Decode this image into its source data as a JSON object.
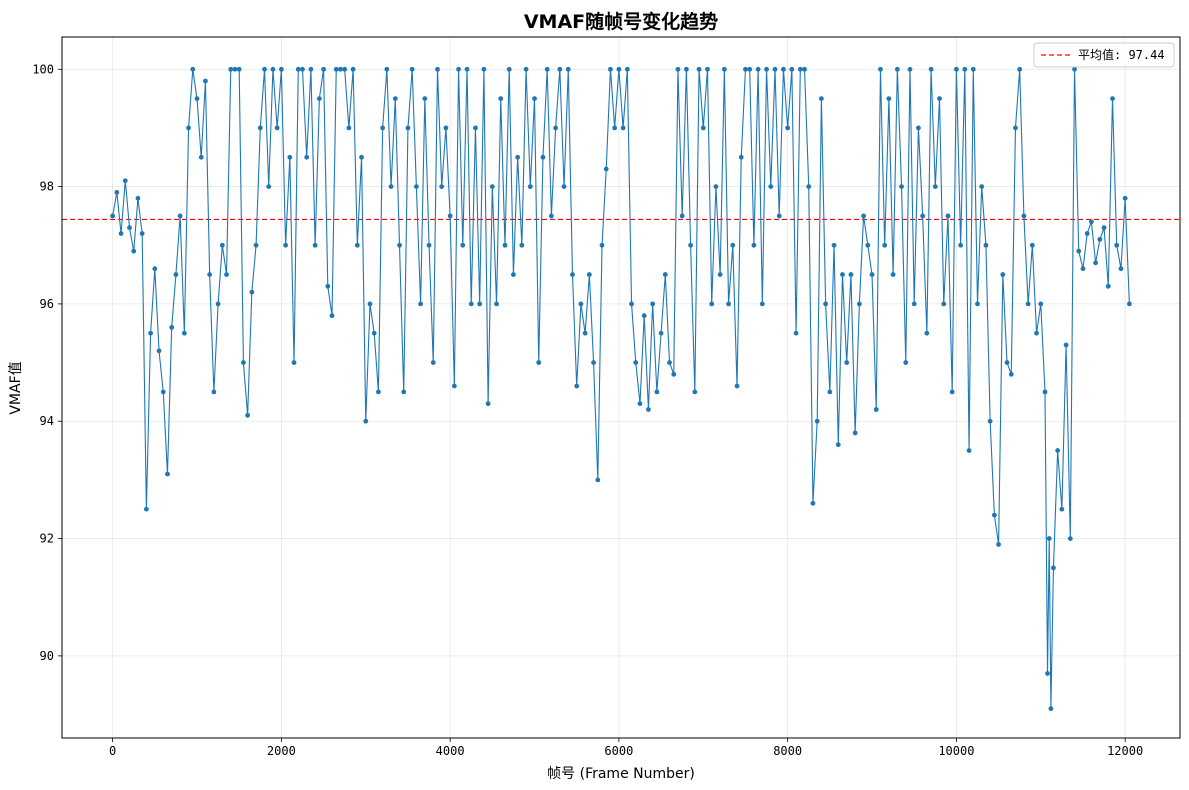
{
  "chart_data": {
    "type": "line",
    "title": "VMAF随帧号变化趋势",
    "xlabel": "帧号 (Frame Number)",
    "ylabel": "VMAF值",
    "xlim": [
      -600,
      12650
    ],
    "ylim": [
      88.6,
      100.55
    ],
    "x_ticks": [
      0,
      2000,
      4000,
      6000,
      8000,
      10000,
      12000
    ],
    "y_ticks": [
      90,
      92,
      94,
      96,
      98,
      100
    ],
    "grid": true,
    "legend_position": "top-right",
    "colors": {
      "series": "#1f77b4",
      "mean_line": "#ff0000"
    },
    "mean_line": {
      "label": "平均值: 97.44",
      "value": 97.44
    },
    "series": [
      {
        "name": "VMAF",
        "marker": "circle",
        "points": [
          [
            0,
            97.5
          ],
          [
            50,
            97.9
          ],
          [
            100,
            97.2
          ],
          [
            150,
            98.1
          ],
          [
            200,
            97.3
          ],
          [
            250,
            96.9
          ],
          [
            300,
            97.8
          ],
          [
            350,
            97.2
          ],
          [
            400,
            92.5
          ],
          [
            450,
            95.5
          ],
          [
            500,
            96.6
          ],
          [
            550,
            95.2
          ],
          [
            600,
            94.5
          ],
          [
            650,
            93.1
          ],
          [
            700,
            95.6
          ],
          [
            750,
            96.5
          ],
          [
            800,
            97.5
          ],
          [
            850,
            95.5
          ],
          [
            900,
            99.0
          ],
          [
            950,
            100.0
          ],
          [
            1000,
            99.5
          ],
          [
            1050,
            98.5
          ],
          [
            1100,
            99.8
          ],
          [
            1150,
            96.5
          ],
          [
            1200,
            94.5
          ],
          [
            1250,
            96.0
          ],
          [
            1300,
            97.0
          ],
          [
            1350,
            96.5
          ],
          [
            1400,
            100.0
          ],
          [
            1450,
            100.0
          ],
          [
            1500,
            100.0
          ],
          [
            1550,
            95.0
          ],
          [
            1600,
            94.1
          ],
          [
            1650,
            96.2
          ],
          [
            1700,
            97.0
          ],
          [
            1750,
            99.0
          ],
          [
            1800,
            100.0
          ],
          [
            1850,
            98.0
          ],
          [
            1900,
            100.0
          ],
          [
            1950,
            99.0
          ],
          [
            2000,
            100.0
          ],
          [
            2050,
            97.0
          ],
          [
            2100,
            98.5
          ],
          [
            2150,
            95.0
          ],
          [
            2200,
            100.0
          ],
          [
            2250,
            100.0
          ],
          [
            2300,
            98.5
          ],
          [
            2350,
            100.0
          ],
          [
            2400,
            97.0
          ],
          [
            2450,
            99.5
          ],
          [
            2500,
            100.0
          ],
          [
            2550,
            96.3
          ],
          [
            2600,
            95.8
          ],
          [
            2650,
            100.0
          ],
          [
            2700,
            100.0
          ],
          [
            2750,
            100.0
          ],
          [
            2800,
            99.0
          ],
          [
            2850,
            100.0
          ],
          [
            2900,
            97.0
          ],
          [
            2950,
            98.5
          ],
          [
            3000,
            94.0
          ],
          [
            3050,
            96.0
          ],
          [
            3100,
            95.5
          ],
          [
            3150,
            94.5
          ],
          [
            3200,
            99.0
          ],
          [
            3250,
            100.0
          ],
          [
            3300,
            98.0
          ],
          [
            3350,
            99.5
          ],
          [
            3400,
            97.0
          ],
          [
            3450,
            94.5
          ],
          [
            3500,
            99.0
          ],
          [
            3550,
            100.0
          ],
          [
            3600,
            98.0
          ],
          [
            3650,
            96.0
          ],
          [
            3700,
            99.5
          ],
          [
            3750,
            97.0
          ],
          [
            3800,
            95.0
          ],
          [
            3850,
            100.0
          ],
          [
            3900,
            98.0
          ],
          [
            3950,
            99.0
          ],
          [
            4000,
            97.5
          ],
          [
            4050,
            94.6
          ],
          [
            4100,
            100.0
          ],
          [
            4150,
            97.0
          ],
          [
            4200,
            100.0
          ],
          [
            4250,
            96.0
          ],
          [
            4300,
            99.0
          ],
          [
            4350,
            96.0
          ],
          [
            4400,
            100.0
          ],
          [
            4450,
            94.3
          ],
          [
            4500,
            98.0
          ],
          [
            4550,
            96.0
          ],
          [
            4600,
            99.5
          ],
          [
            4650,
            97.0
          ],
          [
            4700,
            100.0
          ],
          [
            4750,
            96.5
          ],
          [
            4800,
            98.5
          ],
          [
            4850,
            97.0
          ],
          [
            4900,
            100.0
          ],
          [
            4950,
            98.0
          ],
          [
            5000,
            99.5
          ],
          [
            5050,
            95.0
          ],
          [
            5100,
            98.5
          ],
          [
            5150,
            100.0
          ],
          [
            5200,
            97.5
          ],
          [
            5250,
            99.0
          ],
          [
            5300,
            100.0
          ],
          [
            5350,
            98.0
          ],
          [
            5400,
            100.0
          ],
          [
            5450,
            96.5
          ],
          [
            5500,
            94.6
          ],
          [
            5550,
            96.0
          ],
          [
            5600,
            95.5
          ],
          [
            5650,
            96.5
          ],
          [
            5700,
            95.0
          ],
          [
            5750,
            93.0
          ],
          [
            5800,
            97.0
          ],
          [
            5850,
            98.3
          ],
          [
            5900,
            100.0
          ],
          [
            5950,
            99.0
          ],
          [
            6000,
            100.0
          ],
          [
            6050,
            99.0
          ],
          [
            6100,
            100.0
          ],
          [
            6150,
            96.0
          ],
          [
            6200,
            95.0
          ],
          [
            6250,
            94.3
          ],
          [
            6300,
            95.8
          ],
          [
            6350,
            94.2
          ],
          [
            6400,
            96.0
          ],
          [
            6450,
            94.5
          ],
          [
            6500,
            95.5
          ],
          [
            6550,
            96.5
          ],
          [
            6600,
            95.0
          ],
          [
            6650,
            94.8
          ],
          [
            6700,
            100.0
          ],
          [
            6750,
            97.5
          ],
          [
            6800,
            100.0
          ],
          [
            6850,
            97.0
          ],
          [
            6900,
            94.5
          ],
          [
            6950,
            100.0
          ],
          [
            7000,
            99.0
          ],
          [
            7050,
            100.0
          ],
          [
            7100,
            96.0
          ],
          [
            7150,
            98.0
          ],
          [
            7200,
            96.5
          ],
          [
            7250,
            100.0
          ],
          [
            7300,
            96.0
          ],
          [
            7350,
            97.0
          ],
          [
            7400,
            94.6
          ],
          [
            7450,
            98.5
          ],
          [
            7500,
            100.0
          ],
          [
            7550,
            100.0
          ],
          [
            7600,
            97.0
          ],
          [
            7650,
            100.0
          ],
          [
            7700,
            96.0
          ],
          [
            7750,
            100.0
          ],
          [
            7800,
            98.0
          ],
          [
            7850,
            100.0
          ],
          [
            7900,
            97.5
          ],
          [
            7950,
            100.0
          ],
          [
            8000,
            99.0
          ],
          [
            8050,
            100.0
          ],
          [
            8100,
            95.5
          ],
          [
            8150,
            100.0
          ],
          [
            8200,
            100.0
          ],
          [
            8250,
            98.0
          ],
          [
            8300,
            92.6
          ],
          [
            8350,
            94.0
          ],
          [
            8400,
            99.5
          ],
          [
            8450,
            96.0
          ],
          [
            8500,
            94.5
          ],
          [
            8550,
            97.0
          ],
          [
            8600,
            93.6
          ],
          [
            8650,
            96.5
          ],
          [
            8700,
            95.0
          ],
          [
            8750,
            96.5
          ],
          [
            8800,
            93.8
          ],
          [
            8850,
            96.0
          ],
          [
            8900,
            97.5
          ],
          [
            8950,
            97.0
          ],
          [
            9000,
            96.5
          ],
          [
            9050,
            94.2
          ],
          [
            9100,
            100.0
          ],
          [
            9150,
            97.0
          ],
          [
            9200,
            99.5
          ],
          [
            9250,
            96.5
          ],
          [
            9300,
            100.0
          ],
          [
            9350,
            98.0
          ],
          [
            9400,
            95.0
          ],
          [
            9450,
            100.0
          ],
          [
            9500,
            96.0
          ],
          [
            9550,
            99.0
          ],
          [
            9600,
            97.5
          ],
          [
            9650,
            95.5
          ],
          [
            9700,
            100.0
          ],
          [
            9750,
            98.0
          ],
          [
            9800,
            99.5
          ],
          [
            9850,
            96.0
          ],
          [
            9900,
            97.5
          ],
          [
            9950,
            94.5
          ],
          [
            10000,
            100.0
          ],
          [
            10050,
            97.0
          ],
          [
            10100,
            100.0
          ],
          [
            10150,
            93.5
          ],
          [
            10200,
            100.0
          ],
          [
            10250,
            96.0
          ],
          [
            10300,
            98.0
          ],
          [
            10350,
            97.0
          ],
          [
            10400,
            94.0
          ],
          [
            10450,
            92.4
          ],
          [
            10500,
            91.9
          ],
          [
            10550,
            96.5
          ],
          [
            10600,
            95.0
          ],
          [
            10650,
            94.8
          ],
          [
            10700,
            99.0
          ],
          [
            10750,
            100.0
          ],
          [
            10800,
            97.5
          ],
          [
            10850,
            96.0
          ],
          [
            10900,
            97.0
          ],
          [
            10950,
            95.5
          ],
          [
            11000,
            96.0
          ],
          [
            11050,
            94.5
          ],
          [
            11080,
            89.7
          ],
          [
            11100,
            92.0
          ],
          [
            11120,
            89.1
          ],
          [
            11150,
            91.5
          ],
          [
            11200,
            93.5
          ],
          [
            11250,
            92.5
          ],
          [
            11300,
            95.3
          ],
          [
            11350,
            92.0
          ],
          [
            11400,
            100.0
          ],
          [
            11450,
            96.9
          ],
          [
            11500,
            96.6
          ],
          [
            11550,
            97.2
          ],
          [
            11600,
            97.4
          ],
          [
            11650,
            96.7
          ],
          [
            11700,
            97.1
          ],
          [
            11750,
            97.3
          ],
          [
            11800,
            96.3
          ],
          [
            11850,
            99.5
          ],
          [
            11900,
            97.0
          ],
          [
            11950,
            96.6
          ],
          [
            12000,
            97.8
          ],
          [
            12050,
            96.0
          ]
        ]
      }
    ]
  }
}
